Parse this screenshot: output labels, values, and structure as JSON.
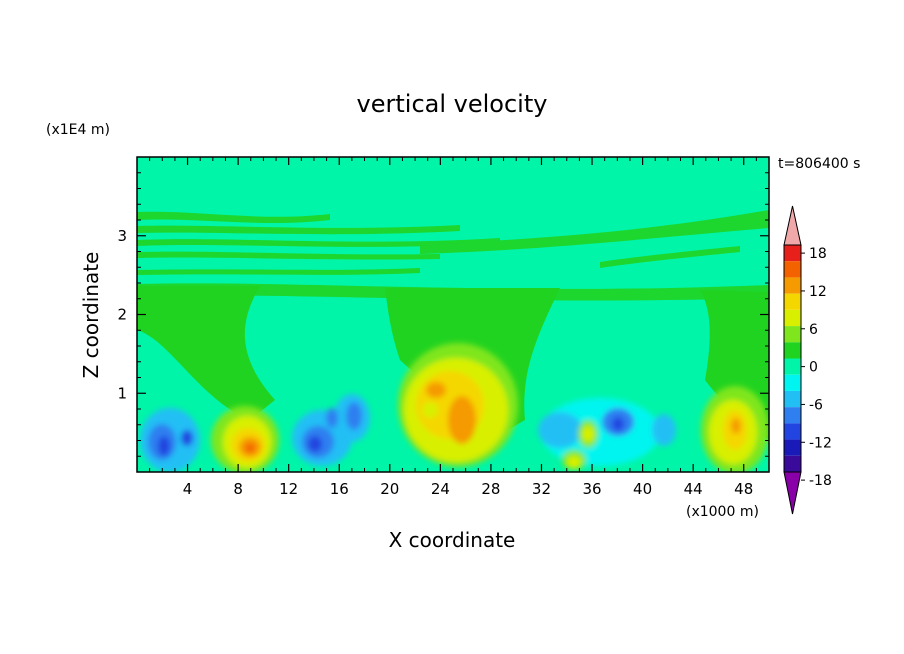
{
  "chart_data": {
    "type": "heatmap",
    "title": "vertical velocity",
    "xlabel": "X coordinate",
    "ylabel": "Z coordinate",
    "x_unit": "(x1000 m)",
    "y_unit": "(x1E4 m)",
    "time_label": "t=806400 s",
    "xlim": [
      0,
      50
    ],
    "ylim": [
      0,
      4
    ],
    "x_ticks": [
      4,
      8,
      12,
      16,
      20,
      24,
      28,
      32,
      36,
      40,
      44,
      48
    ],
    "y_ticks": [
      1,
      2,
      3
    ],
    "colorbar": {
      "levels": [
        -21,
        -18,
        -15,
        -12,
        -9,
        -6,
        -3,
        0,
        3,
        6,
        9,
        12,
        15,
        18,
        21
      ],
      "tick_labels": [
        "18",
        "12",
        "6",
        "0",
        "-6",
        "-12",
        "-18"
      ],
      "tick_values": [
        18,
        12,
        6,
        0,
        -6,
        -12,
        -18
      ],
      "colors": [
        "#8a00a8",
        "#3a0a9a",
        "#1a1ab8",
        "#2244e0",
        "#2f7ff0",
        "#22bff5",
        "#00f5f0",
        "#00f5a8",
        "#21d321",
        "#7fe61e",
        "#d8f000",
        "#f5d700",
        "#f59a00",
        "#f46200",
        "#e8201c",
        "#f0a8a8"
      ],
      "over_color": "#f0a8a8",
      "under_color": "#8a00a8",
      "background_value_color": "#00f5a8"
    },
    "features": [
      {
        "x": 1.5,
        "z": 0.35,
        "value": -11
      },
      {
        "x": 4.5,
        "z": 0.32,
        "value": -9
      },
      {
        "x": 8.5,
        "z": 0.35,
        "value": 14
      },
      {
        "x": 15,
        "z": 0.35,
        "value": -10
      },
      {
        "x": 17.5,
        "z": 0.7,
        "value": -7
      },
      {
        "x": 24.5,
        "z": 0.85,
        "value": 9
      },
      {
        "x": 25.5,
        "z": 0.6,
        "value": 12
      },
      {
        "x": 34.5,
        "z": 0.15,
        "value": 6
      },
      {
        "x": 36,
        "z": 0.5,
        "value": 5
      },
      {
        "x": 38.5,
        "z": 0.55,
        "value": -9
      },
      {
        "x": 47,
        "z": 0.5,
        "value": 11
      }
    ]
  }
}
